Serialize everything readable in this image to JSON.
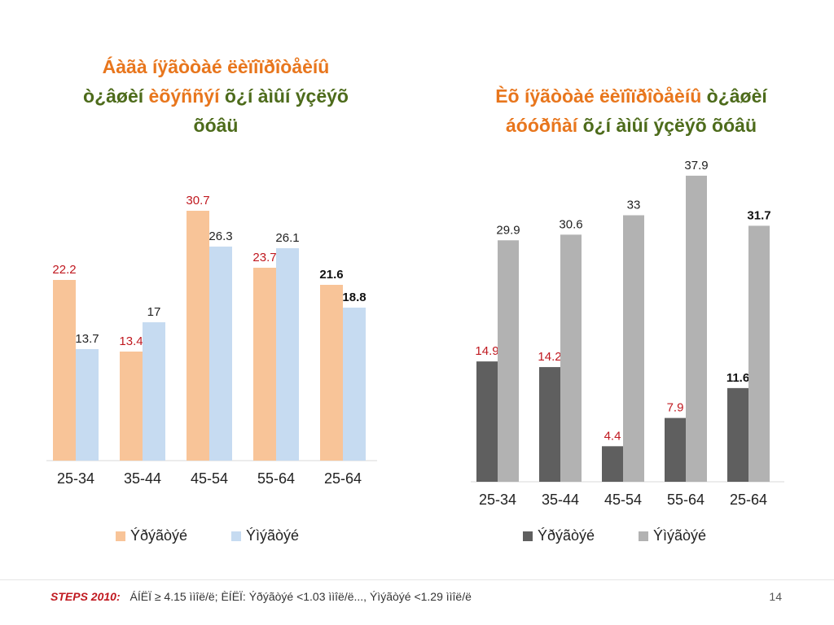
{
  "colors": {
    "title_orange": "#e8761d",
    "title_green": "#4d6b1b",
    "men_light": "#f8c498",
    "women_light": "#c6dbf1",
    "men_dark": "#5f5f5f",
    "women_dark": "#b2b2b2",
    "label_red": "#c0181f",
    "label_dark": "#222222"
  },
  "titles": {
    "left": {
      "part1": "Áàãà íÿãòòàé ëèïîïðîòåèíû",
      "part2a": "ò¿âøèí",
      "part2b": "èõýññýí",
      "part2c": "õ¿í àìûí ýçëýõ",
      "part3": "õóâü"
    },
    "right": {
      "part1": "Èõ íÿãòòàé ëèïîïðîòåèíû",
      "part2": "ò¿âøèí",
      "part3a": "áóóðñàí",
      "part3b": "õ¿í àìûí ýçëýõ õóâü"
    }
  },
  "chart_data": [
    {
      "type": "bar",
      "categories": [
        "25-34",
        "35-44",
        "45-54",
        "55-64",
        "25-64"
      ],
      "series": [
        {
          "name": "Ýðýãòýé",
          "values": [
            22.2,
            13.4,
            30.7,
            23.7,
            21.6
          ],
          "color": "#f8c498",
          "label_color": "#c0181f"
        },
        {
          "name": "Ýìýãòýé",
          "values": [
            13.7,
            17,
            26.3,
            26.1,
            18.8
          ],
          "color": "#c6dbf1",
          "label_color": "#222222"
        }
      ],
      "ylim": [
        0,
        38
      ],
      "grid": false,
      "legend": "bottom",
      "bold_category": "25-64"
    },
    {
      "type": "bar",
      "categories": [
        "25-34",
        "35-44",
        "45-54",
        "55-64",
        "25-64"
      ],
      "series": [
        {
          "name": "Ýðýãòýé",
          "values": [
            14.9,
            14.2,
            4.4,
            7.9,
            11.6
          ],
          "color": "#5f5f5f",
          "label_color": "#c0181f"
        },
        {
          "name": "Ýìýãòýé",
          "values": [
            29.9,
            30.6,
            33,
            37.9,
            31.7
          ],
          "color": "#b2b2b2",
          "label_color": "#222222"
        }
      ],
      "ylim": [
        0,
        39.5
      ],
      "grid": false,
      "legend": "bottom",
      "bold_category": "25-64"
    }
  ],
  "footer": {
    "source": "STEPS 2010:",
    "note": "ÁÍËÏ ≥ 4.15 ììîë/ë;   ÈÍËÏ: Ýðýãòýé <1.03 ììîë/ë..., Ýìýãòýé <1.29 ììîë/ë",
    "page": "14"
  }
}
